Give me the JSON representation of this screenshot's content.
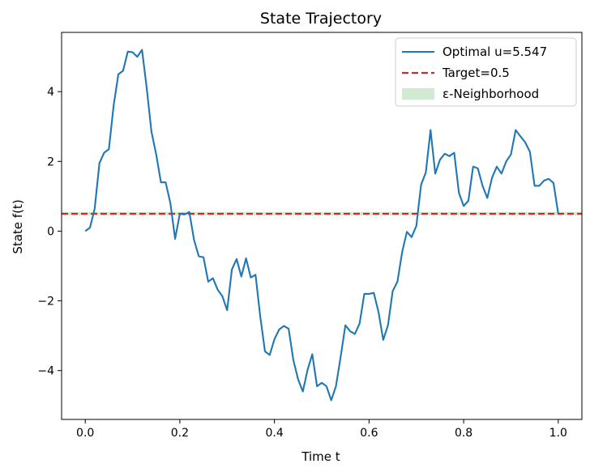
{
  "chart_data": {
    "type": "line",
    "title": "State Trajectory",
    "xlabel": "Time t",
    "ylabel": "State f(t)",
    "xlim": [
      -0.05,
      1.05
    ],
    "ylim": [
      -5.4,
      5.7
    ],
    "xticks": [
      0.0,
      0.2,
      0.4,
      0.6,
      0.8,
      1.0
    ],
    "xtick_labels": [
      "0.0",
      "0.2",
      "0.4",
      "0.6",
      "0.8",
      "1.0"
    ],
    "yticks": [
      -4,
      -2,
      0,
      2,
      4
    ],
    "ytick_labels": [
      "−4",
      "−2",
      "0",
      "2",
      "4"
    ],
    "grid": false,
    "legend_position": "top-right",
    "series": [
      {
        "name": "Optimal u=5.547",
        "color": "#1f77b4",
        "x": [
          0.0,
          0.01,
          0.02,
          0.03,
          0.04,
          0.05,
          0.06,
          0.07,
          0.08,
          0.09,
          0.1,
          0.11,
          0.12,
          0.13,
          0.14,
          0.15,
          0.16,
          0.17,
          0.18,
          0.19,
          0.2,
          0.21,
          0.22,
          0.23,
          0.24,
          0.25,
          0.26,
          0.27,
          0.28,
          0.29,
          0.3,
          0.31,
          0.32,
          0.33,
          0.34,
          0.35,
          0.36,
          0.37,
          0.38,
          0.39,
          0.4,
          0.41,
          0.42,
          0.43,
          0.44,
          0.45,
          0.46,
          0.47,
          0.48,
          0.49,
          0.5,
          0.51,
          0.52,
          0.53,
          0.54,
          0.55,
          0.56,
          0.57,
          0.58,
          0.59,
          0.6,
          0.61,
          0.62,
          0.63,
          0.64,
          0.65,
          0.66,
          0.67,
          0.68,
          0.69,
          0.7,
          0.71,
          0.72,
          0.73,
          0.74,
          0.75,
          0.76,
          0.77,
          0.78,
          0.79,
          0.8,
          0.81,
          0.82,
          0.83,
          0.84,
          0.85,
          0.86,
          0.87,
          0.88,
          0.89,
          0.9,
          0.91,
          0.92,
          0.93,
          0.94,
          0.95,
          0.96,
          0.97,
          0.98,
          0.99,
          1.0
        ],
        "y": [
          0.0,
          0.1,
          0.65,
          1.95,
          2.25,
          2.35,
          3.6,
          4.5,
          4.6,
          5.15,
          5.13,
          5.0,
          5.2,
          4.1,
          2.85,
          2.2,
          1.4,
          1.4,
          0.8,
          -0.22,
          0.5,
          0.48,
          0.55,
          -0.25,
          -0.72,
          -0.75,
          -1.45,
          -1.35,
          -1.68,
          -1.87,
          -2.27,
          -1.1,
          -0.8,
          -1.3,
          -0.78,
          -1.33,
          -1.25,
          -2.45,
          -3.45,
          -3.55,
          -3.1,
          -2.82,
          -2.72,
          -2.8,
          -3.7,
          -4.25,
          -4.6,
          -3.98,
          -3.53,
          -4.45,
          -4.35,
          -4.45,
          -4.85,
          -4.45,
          -3.6,
          -2.7,
          -2.87,
          -2.95,
          -2.65,
          -1.8,
          -1.8,
          -1.77,
          -2.32,
          -3.12,
          -2.7,
          -1.72,
          -1.45,
          -0.6,
          -0.02,
          -0.17,
          0.15,
          1.33,
          1.68,
          2.9,
          1.65,
          2.05,
          2.22,
          2.15,
          2.25,
          1.1,
          0.72,
          0.87,
          1.85,
          1.8,
          1.3,
          0.95,
          1.53,
          1.85,
          1.65,
          2.0,
          2.2,
          2.9,
          2.72,
          2.55,
          2.28,
          1.3,
          1.3,
          1.45,
          1.5,
          1.38,
          0.5
        ]
      },
      {
        "name": "Target=0.5",
        "color": "#d62728",
        "style": "dashed",
        "y": 0.5
      },
      {
        "name": "ε-Neighborhood",
        "color": "#2ca02c",
        "style": "band",
        "ymin": 0.45,
        "ymax": 0.55
      }
    ]
  }
}
